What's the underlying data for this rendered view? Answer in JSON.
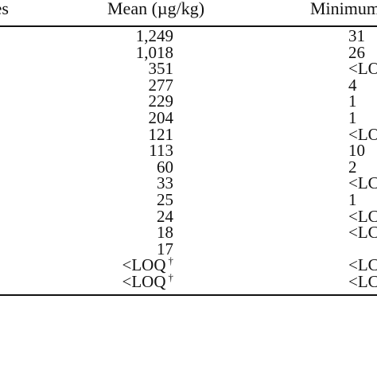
{
  "table": {
    "headers": {
      "left": "es",
      "mean": "Mean (µg/kg)",
      "minimum": "Minimum"
    },
    "rows": [
      {
        "mean": "1,249",
        "mean_note": "",
        "minimum": "31"
      },
      {
        "mean": "1,018",
        "mean_note": "",
        "minimum": "26"
      },
      {
        "mean": "351",
        "mean_note": "",
        "minimum": "<LO"
      },
      {
        "mean": "277",
        "mean_note": "",
        "minimum": "4"
      },
      {
        "mean": "229",
        "mean_note": "",
        "minimum": "1"
      },
      {
        "mean": "204",
        "mean_note": "",
        "minimum": "1"
      },
      {
        "mean": "121",
        "mean_note": "",
        "minimum": "<LO"
      },
      {
        "mean": "113",
        "mean_note": "",
        "minimum": "10"
      },
      {
        "mean": "60",
        "mean_note": "",
        "minimum": "2"
      },
      {
        "mean": "33",
        "mean_note": "",
        "minimum": "<LC"
      },
      {
        "mean": "25",
        "mean_note": "",
        "minimum": "1"
      },
      {
        "mean": "24",
        "mean_note": "",
        "minimum": "<LC"
      },
      {
        "mean": "18",
        "mean_note": "",
        "minimum": "<LC"
      },
      {
        "mean": "17",
        "mean_note": "",
        "minimum": ""
      },
      {
        "mean": "<LOQ",
        "mean_note": "†",
        "minimum": "<LC"
      },
      {
        "mean": "<LOQ",
        "mean_note": "†",
        "minimum": "<LC"
      }
    ]
  }
}
